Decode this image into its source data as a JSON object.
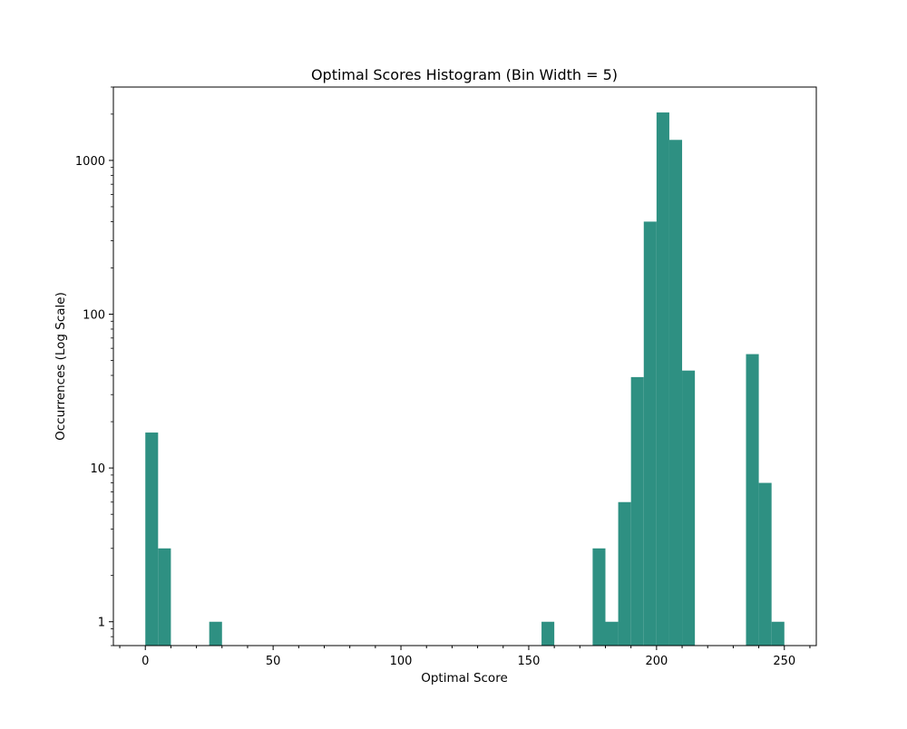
{
  "chart_data": {
    "type": "bar",
    "title": "Optimal Scores Histogram (Bin Width = 5)",
    "xlabel": "Optimal Score",
    "ylabel": "Occurrences (Log Scale)",
    "yscale": "log",
    "bin_width": 5,
    "xlim": [
      -12.5,
      262.5
    ],
    "ylim": [
      0.7,
      3000
    ],
    "x_ticks": [
      0,
      50,
      100,
      150,
      200,
      250
    ],
    "x_tick_labels": [
      "0",
      "50",
      "100",
      "150",
      "200",
      "250"
    ],
    "y_ticks": [
      1,
      10,
      100,
      1000
    ],
    "y_tick_labels": [
      "1",
      "10",
      "100",
      "1000"
    ],
    "grid": false,
    "legend": "none",
    "bar_color": "#2e9082",
    "bins": [
      {
        "start": 0,
        "end": 5,
        "count": 17
      },
      {
        "start": 5,
        "end": 10,
        "count": 3
      },
      {
        "start": 25,
        "end": 30,
        "count": 1
      },
      {
        "start": 155,
        "end": 160,
        "count": 1
      },
      {
        "start": 175,
        "end": 180,
        "count": 3
      },
      {
        "start": 180,
        "end": 185,
        "count": 1
      },
      {
        "start": 185,
        "end": 190,
        "count": 6
      },
      {
        "start": 190,
        "end": 195,
        "count": 39
      },
      {
        "start": 195,
        "end": 200,
        "count": 400
      },
      {
        "start": 200,
        "end": 205,
        "count": 2050
      },
      {
        "start": 205,
        "end": 210,
        "count": 1360
      },
      {
        "start": 210,
        "end": 215,
        "count": 43
      },
      {
        "start": 235,
        "end": 240,
        "count": 55
      },
      {
        "start": 240,
        "end": 245,
        "count": 8
      },
      {
        "start": 245,
        "end": 250,
        "count": 1
      }
    ]
  }
}
